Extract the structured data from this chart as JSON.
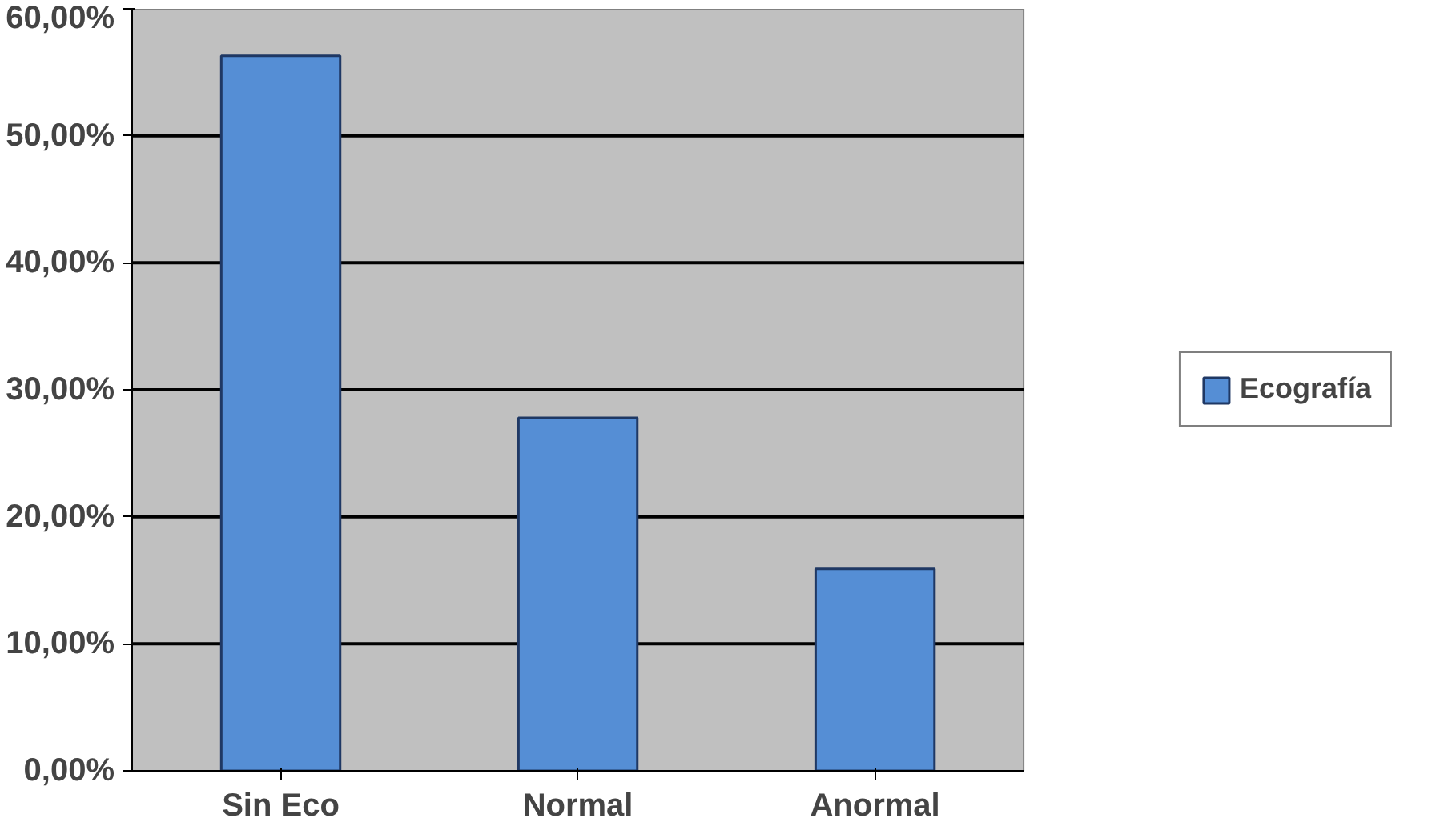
{
  "chart_data": {
    "type": "bar",
    "categories": [
      "Sin Eco",
      "Normal",
      "Anormal"
    ],
    "series": [
      {
        "name": "Ecografía",
        "color": "#558ed5",
        "values": [
          56.3,
          27.8,
          15.9
        ]
      }
    ],
    "ylim": [
      0,
      60
    ],
    "yticks": [
      {
        "value": 0,
        "label": "0,00%"
      },
      {
        "value": 10,
        "label": "10,00%"
      },
      {
        "value": 20,
        "label": "20,00%"
      },
      {
        "value": 30,
        "label": "30,00%"
      },
      {
        "value": 40,
        "label": "40,00%"
      },
      {
        "value": 50,
        "label": "50,00%"
      },
      {
        "value": 60,
        "label": "60,00%"
      }
    ],
    "grid": "y",
    "legend": "right"
  }
}
